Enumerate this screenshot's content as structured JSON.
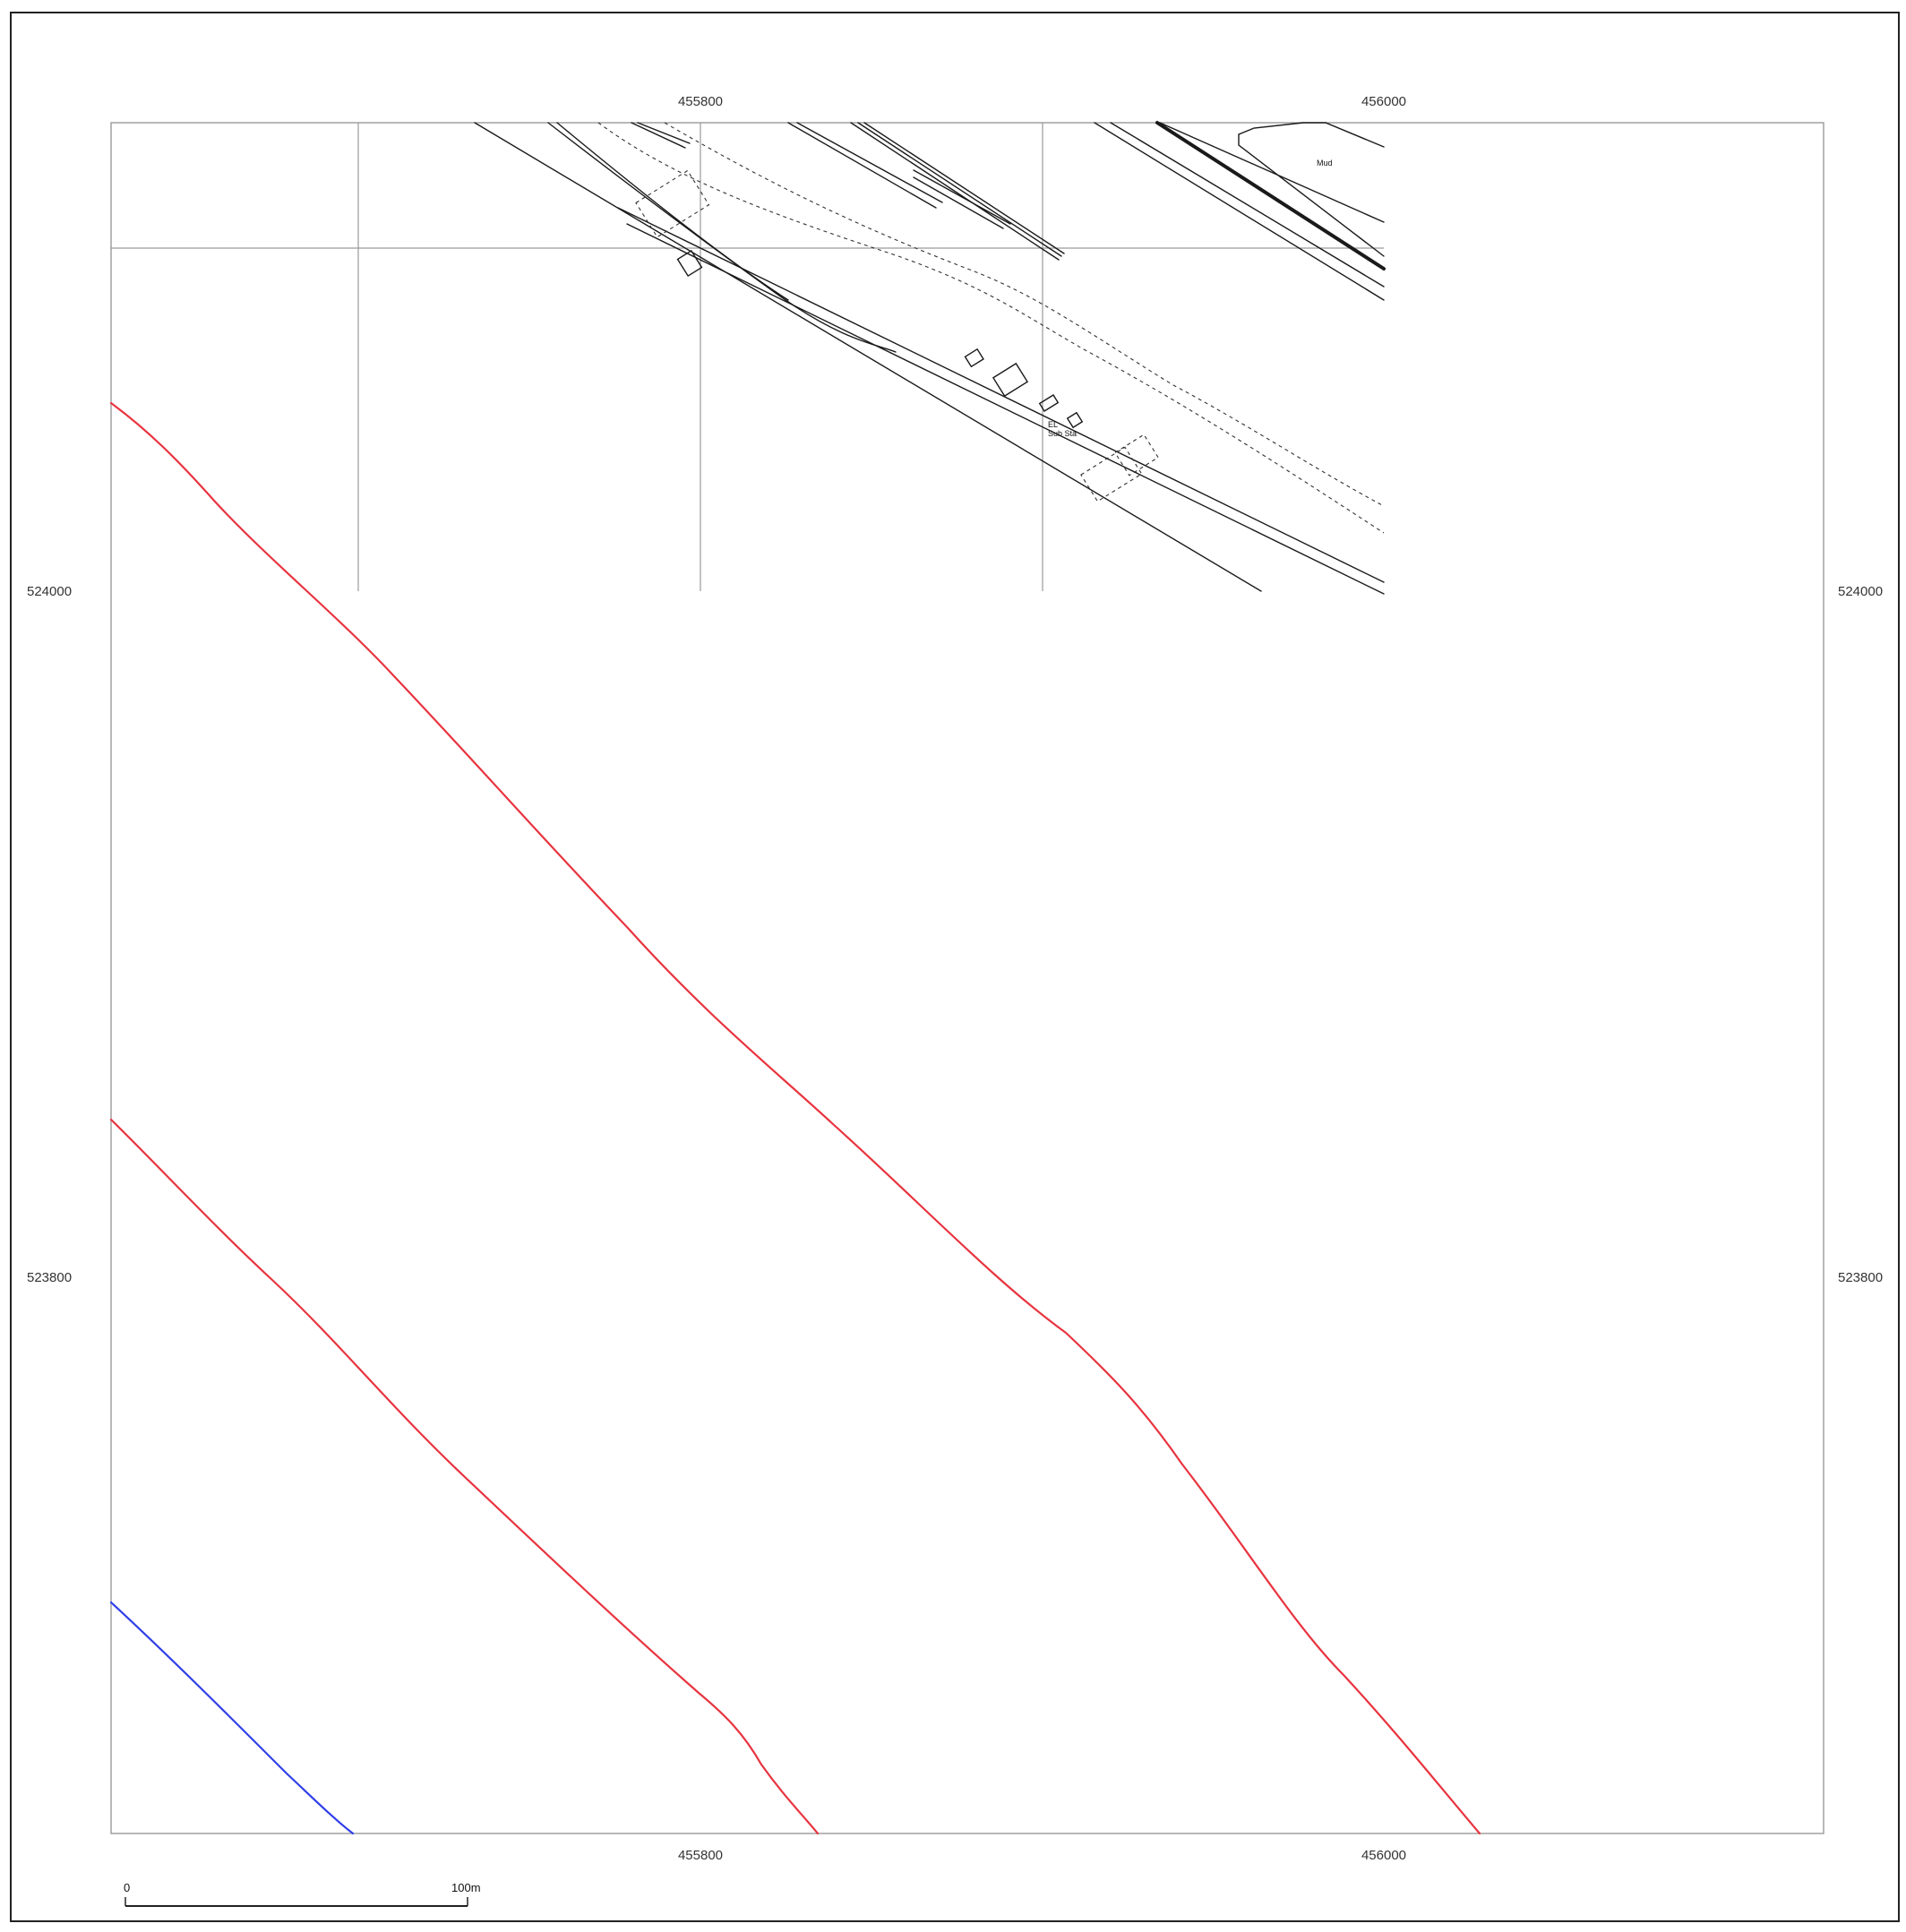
{
  "map": {
    "grid": {
      "top_eastings": [
        "455800",
        "456000"
      ],
      "bottom_eastings": [
        "455800",
        "456000"
      ],
      "left_northings": [
        "524000",
        "523800"
      ],
      "right_northings": [
        "524000",
        "523800"
      ]
    },
    "features": {
      "mud_label": "Mud",
      "substation_label_line1": "EL",
      "substation_label_line2": "Sub Sta"
    },
    "colors": {
      "contour_red": "#e8343f",
      "line_blue": "#2f3fe8",
      "grid_line": "#9a9a9a",
      "frame": "#222222",
      "basemap_line": "#1a1a1a"
    },
    "scale_bar": {
      "start_label": "0",
      "end_label": "100m"
    }
  }
}
